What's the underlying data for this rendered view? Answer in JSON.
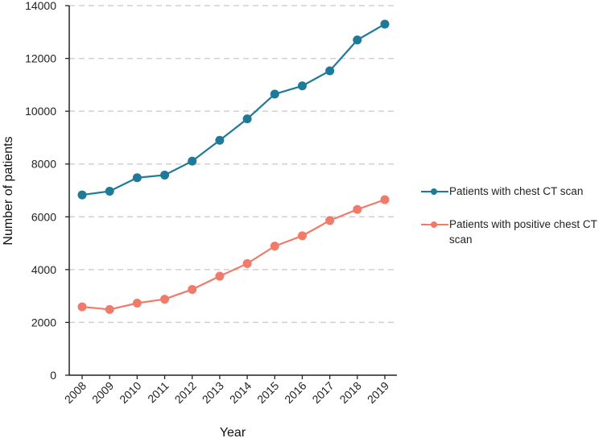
{
  "chart_data": {
    "type": "line",
    "categories": [
      "2008",
      "2009",
      "2010",
      "2011",
      "2012",
      "2013",
      "2014",
      "2015",
      "2016",
      "2017",
      "2018",
      "2019"
    ],
    "series": [
      {
        "name": "Patients with chest CT scan",
        "color": "#1f7a99",
        "values": [
          6830,
          6970,
          7480,
          7580,
          8110,
          8900,
          9710,
          10650,
          10960,
          11530,
          12700,
          13300
        ]
      },
      {
        "name": "Patients with positive chest CT scan",
        "color": "#f07b6a",
        "values": [
          2590,
          2490,
          2730,
          2880,
          3250,
          3750,
          4230,
          4890,
          5280,
          5860,
          6280,
          6650
        ]
      }
    ],
    "yticks": [
      "0",
      "2000",
      "4000",
      "6000",
      "8000",
      "10000",
      "12000",
      "14000"
    ],
    "ylim": [
      0,
      14000
    ],
    "xlabel": "Year",
    "ylabel": "Number of patients",
    "grid": "horizontal-dashed",
    "legend": "right"
  }
}
